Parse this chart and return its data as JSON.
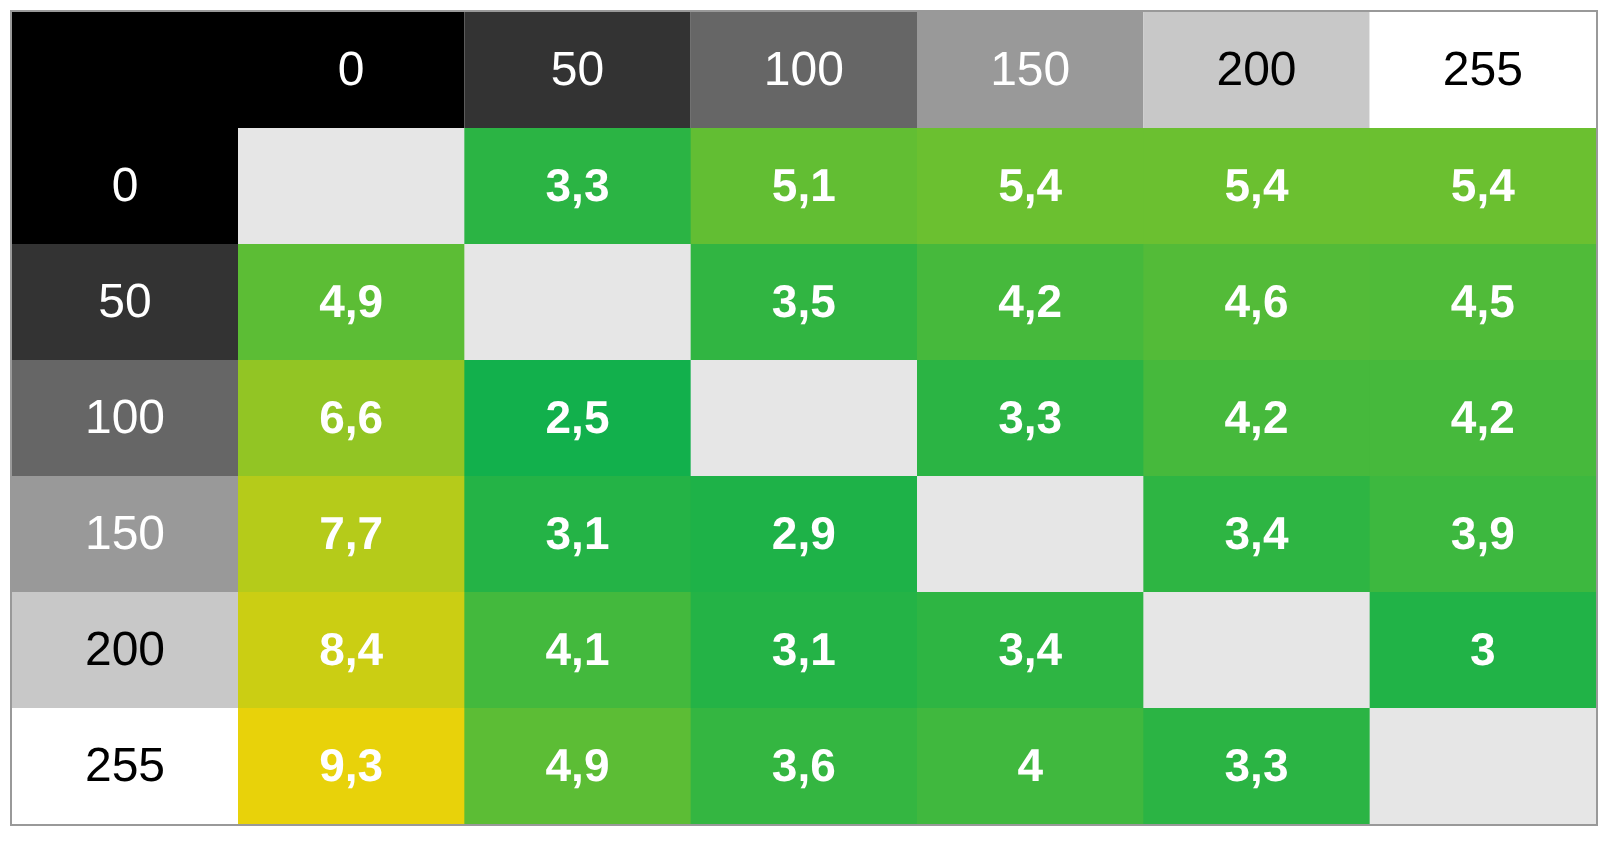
{
  "chart_data": {
    "type": "heatmap",
    "categories": [
      "0",
      "50",
      "100",
      "150",
      "200",
      "255"
    ],
    "y_categories": [
      "0",
      "50",
      "100",
      "150",
      "200",
      "255"
    ],
    "cells": [
      [
        null,
        3.3,
        5.1,
        5.4,
        5.4,
        5.4
      ],
      [
        4.9,
        null,
        3.5,
        4.2,
        4.6,
        4.5
      ],
      [
        6.6,
        2.5,
        null,
        3.3,
        4.2,
        4.2
      ],
      [
        7.7,
        3.1,
        2.9,
        null,
        3.4,
        3.9
      ],
      [
        8.4,
        4.1,
        3.1,
        3.4,
        null,
        3
      ],
      [
        9.3,
        4.9,
        3.6,
        4,
        3.3,
        null
      ]
    ],
    "cell_labels": [
      [
        null,
        "3,3",
        "5,1",
        "5,4",
        "5,4",
        "5,4"
      ],
      [
        "4,9",
        null,
        "3,5",
        "4,2",
        "4,6",
        "4,5"
      ],
      [
        "6,6",
        "2,5",
        null,
        "3,3",
        "4,2",
        "4,2"
      ],
      [
        "7,7",
        "3,1",
        "2,9",
        null,
        "3,4",
        "3,9"
      ],
      [
        "8,4",
        "4,1",
        "3,1",
        "3,4",
        null,
        "3"
      ],
      [
        "9,3",
        "4,9",
        "3,6",
        "4",
        "3,3",
        null
      ]
    ]
  }
}
